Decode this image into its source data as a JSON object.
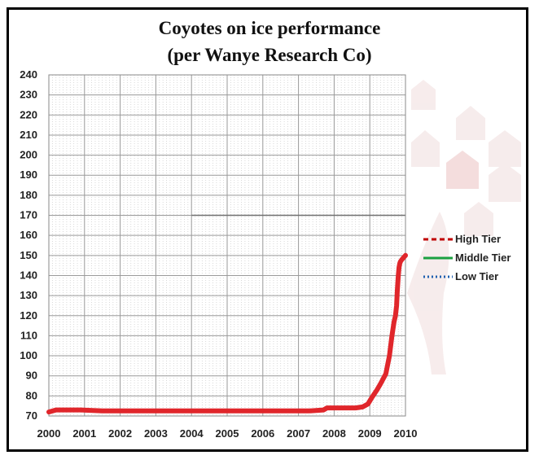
{
  "chart_data": {
    "type": "line",
    "title": "Coyotes on ice performance",
    "subtitle": "(per Wanye Research Co)",
    "xlabel": "",
    "ylabel": "",
    "xlim": [
      2000,
      2010
    ],
    "ylim": [
      70,
      240
    ],
    "x_ticks": [
      "2000",
      "2001",
      "2002",
      "2003",
      "2004",
      "2005",
      "2006",
      "2007",
      "2008",
      "2009",
      "2010"
    ],
    "y_ticks": [
      "240",
      "230",
      "220",
      "210",
      "200",
      "190",
      "180",
      "170",
      "160",
      "150",
      "140",
      "130",
      "120",
      "110",
      "100",
      "90",
      "80",
      "70"
    ],
    "grid": true,
    "legend": {
      "placement": "right",
      "entries": [
        {
          "name": "High Tier",
          "color": "#c00000",
          "style": "dashed"
        },
        {
          "name": "Middle Tier",
          "color": "#1aa040",
          "style": "solid"
        },
        {
          "name": "Low Tier",
          "color": "#2060b0",
          "style": "dotted"
        }
      ]
    },
    "series": [
      {
        "name": "High Tier",
        "color": "#e0262b",
        "x": [
          2000.0,
          2000.2,
          2000.6,
          2000.9,
          2001.5,
          2002.5,
          2003.5,
          2004.5,
          2005.5,
          2006.5,
          2007.3,
          2007.7,
          2007.8,
          2008.0,
          2008.3,
          2008.6,
          2008.8,
          2008.95,
          2009.05,
          2009.2,
          2009.3,
          2009.45,
          2009.55,
          2009.62,
          2009.68,
          2009.72,
          2009.75,
          2009.77,
          2009.8,
          2009.82,
          2009.84,
          2009.86,
          2009.9,
          2010.0
        ],
        "y": [
          72,
          73,
          73,
          73,
          72.5,
          72.5,
          72.5,
          72.5,
          72.5,
          72.5,
          72.5,
          73,
          74,
          74,
          74,
          74,
          74.5,
          76,
          79,
          83,
          86,
          91,
          100,
          110,
          117,
          120,
          125,
          132,
          140,
          144,
          146,
          147,
          148,
          150
        ]
      }
    ]
  }
}
